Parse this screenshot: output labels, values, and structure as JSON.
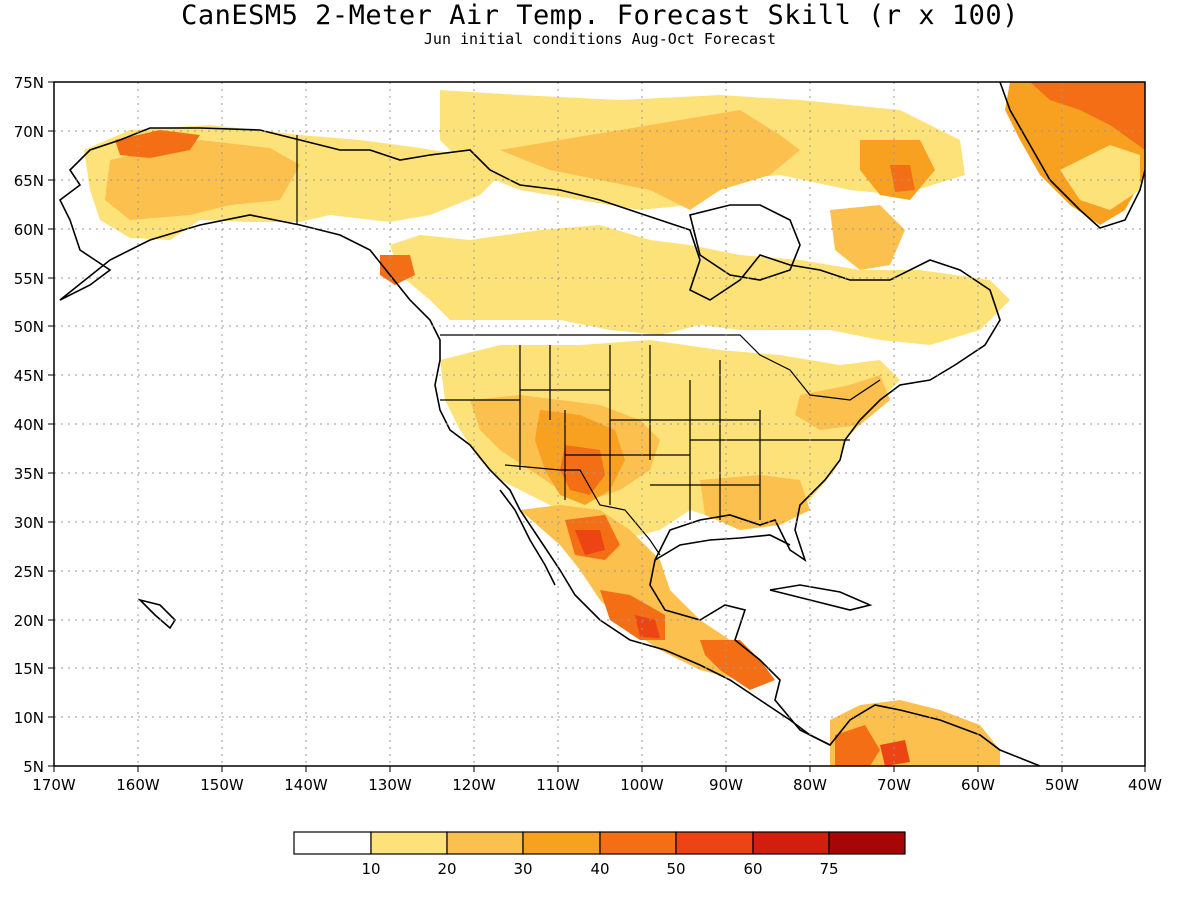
{
  "title": "CanESM5 2-Meter Air Temp. Forecast Skill (r x 100)",
  "subtitle": "Jun initial conditions  Aug-Oct Forecast",
  "map": {
    "lon_range": [
      -170,
      -40
    ],
    "lat_range": [
      5,
      75
    ],
    "lon_ticks": [
      "170W",
      "160W",
      "150W",
      "140W",
      "130W",
      "120W",
      "110W",
      "100W",
      "90W",
      "80W",
      "70W",
      "60W",
      "50W",
      "40W"
    ],
    "lat_ticks": [
      "75N",
      "70N",
      "65N",
      "60N",
      "55N",
      "50N",
      "45N",
      "40N",
      "35N",
      "30N",
      "25N",
      "20N",
      "15N",
      "10N",
      "5N"
    ],
    "gridlines": "dotted"
  },
  "colorbar": {
    "labels": [
      "10",
      "20",
      "30",
      "40",
      "50",
      "60",
      "75"
    ],
    "colors": [
      "#ffffff",
      "#fde27a",
      "#fbc04e",
      "#f8a020",
      "#f46e16",
      "#ec4412",
      "#d21e0e",
      "#a60606"
    ]
  },
  "colors": {
    "c10": "#fde27a",
    "c20": "#fbc04e",
    "c30": "#f8a020",
    "c40": "#f46e16",
    "c50": "#ec4412",
    "c60": "#d21e0e"
  }
}
